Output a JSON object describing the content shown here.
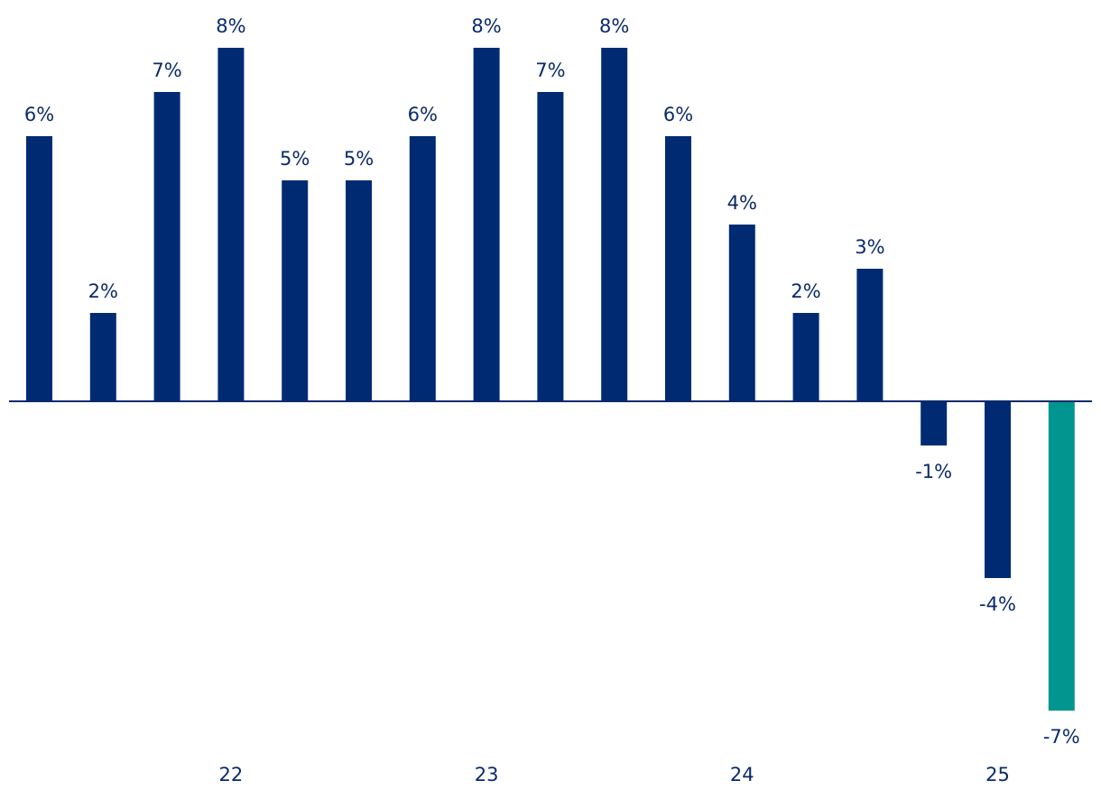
{
  "chart_data": {
    "type": "bar",
    "title": "",
    "xlabel": "",
    "ylabel": "",
    "categories": [
      "",
      "",
      "",
      "22",
      "",
      "",
      "",
      "23",
      "",
      "",
      "",
      "24",
      "",
      "",
      "",
      "25",
      ""
    ],
    "x_tick_labels": [
      "22",
      "23",
      "24",
      "25"
    ],
    "values": [
      6,
      2,
      7,
      8,
      5,
      5,
      6,
      8,
      7,
      8,
      6,
      4,
      2,
      3,
      -1,
      -4,
      -7
    ],
    "labels": [
      "6%",
      "2%",
      "7%",
      "8%",
      "5%",
      "5%",
      "6%",
      "8%",
      "7%",
      "8%",
      "6%",
      "4%",
      "2%",
      "3%",
      "-1%",
      "-4%",
      "-7%"
    ],
    "ylim": [
      -7,
      8
    ],
    "grid": false,
    "legend": "none",
    "colors": {
      "bar": "#002b73",
      "highlight": "#00968f",
      "highlight_index": 16,
      "axis": "#0b2a6b",
      "label": "#0b2a6b"
    }
  }
}
